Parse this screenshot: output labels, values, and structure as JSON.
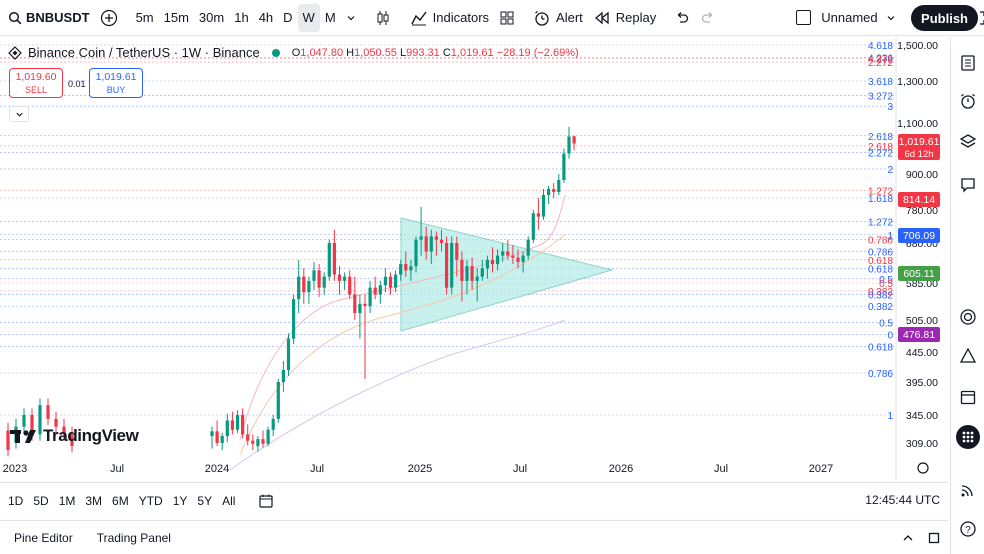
{
  "toolbar": {
    "symbol": "BNBUSDT",
    "intervals": [
      "5m",
      "15m",
      "30m",
      "1h",
      "4h",
      "D",
      "W",
      "M"
    ],
    "active_interval": "W",
    "indicators_label": "Indicators",
    "alert_label": "Alert",
    "replay_label": "Replay",
    "layout_name": "Unnamed",
    "publish_label": "Publish"
  },
  "legend": {
    "title": "Binance Coin / TetherUS · 1W · Binance",
    "o_label": "O",
    "o": "1,047.80",
    "h_label": "H",
    "h": "1,050.55",
    "l_label": "L",
    "l": "993.31",
    "c_label": "C",
    "c": "1,019.61",
    "change": "−28.19 (−2.69%)"
  },
  "trade": {
    "sell_price": "1,019.60",
    "sell_label": "SELL",
    "spread": "0.01",
    "buy_price": "1,019.61",
    "buy_label": "BUY"
  },
  "colors": {
    "up": "#089981",
    "down": "#f23645",
    "accent": "#2962ff",
    "triangle": "#b2ebe5"
  },
  "chart_data": {
    "type": "candlestick",
    "x_tick_labels": [
      "2023",
      "Jul",
      "2024",
      "Jul",
      "2025",
      "Jul",
      "2026",
      "Jul",
      "2027"
    ],
    "y_tick_labels": [
      "1,500.00",
      "1,300.00",
      "1,100.00",
      "900.00",
      "780.00",
      "680.00",
      "585.00",
      "505.00",
      "445.00",
      "395.00",
      "345.00",
      "309.00"
    ],
    "price_tags": [
      {
        "label": "1,019.61",
        "sub": "6d 12h",
        "color": "#f23645"
      },
      {
        "label": "814.14",
        "color": "#f23645"
      },
      {
        "label": "706.09",
        "color": "#2962ff"
      },
      {
        "label": "605.11",
        "color": "#43a047"
      },
      {
        "label": "476.81",
        "color": "#9c27b0"
      }
    ],
    "fib_levels": [
      {
        "label": "4.618",
        "color": "#2962ff",
        "price": 1500
      },
      {
        "label": "4.236",
        "color": "#2962ff",
        "price": 1430
      },
      {
        "label": "4.272",
        "color": "#f23645",
        "price": 1425
      },
      {
        "label": "2.272",
        "color": "#f23645",
        "price": 1405
      },
      {
        "label": "3.618",
        "color": "#2962ff",
        "price": 1300
      },
      {
        "label": "3.272",
        "color": "#2962ff",
        "price": 1230
      },
      {
        "label": "3",
        "color": "#2962ff",
        "price": 1180
      },
      {
        "label": "2.618",
        "color": "#2962ff",
        "price": 1050
      },
      {
        "label": "2.618",
        "color": "#f23645",
        "price": 1010
      },
      {
        "label": "2.272",
        "color": "#2962ff",
        "price": 985
      },
      {
        "label": "2",
        "color": "#2962ff",
        "price": 920
      },
      {
        "label": "1.272",
        "color": "#f23645",
        "price": 845
      },
      {
        "label": "1.618",
        "color": "#2962ff",
        "price": 820
      },
      {
        "label": "1.272",
        "color": "#2962ff",
        "price": 745
      },
      {
        "label": "1",
        "color": "#2962ff",
        "price": 705
      },
      {
        "label": "0.786",
        "color": "#f23645",
        "price": 690
      },
      {
        "label": "0.786",
        "color": "#2962ff",
        "price": 660
      },
      {
        "label": "0.618",
        "color": "#f23645",
        "price": 640
      },
      {
        "label": "0.618",
        "color": "#2962ff",
        "price": 620
      },
      {
        "label": "0.5",
        "color": "#2962ff",
        "price": 595
      },
      {
        "label": "0.5",
        "color": "#f23645",
        "price": 585
      },
      {
        "label": "0.382",
        "color": "#f23645",
        "price": 568
      },
      {
        "label": "0.382",
        "color": "#2962ff",
        "price": 560
      },
      {
        "label": "0.382",
        "color": "#2962ff",
        "price": 535
      },
      {
        "label": "0.5",
        "color": "#2962ff",
        "price": 500
      },
      {
        "label": "0",
        "color": "#2962ff",
        "price": 478
      },
      {
        "label": "0.618",
        "color": "#2962ff",
        "price": 455
      },
      {
        "label": "0.786",
        "color": "#2962ff",
        "price": 410
      },
      {
        "label": "1",
        "color": "#2962ff",
        "price": 345
      }
    ],
    "candles": [
      {
        "o": 318,
        "h": 330,
        "l": 302,
        "c": 324
      },
      {
        "o": 324,
        "h": 338,
        "l": 305,
        "c": 309
      },
      {
        "o": 309,
        "h": 322,
        "l": 300,
        "c": 318
      },
      {
        "o": 318,
        "h": 347,
        "l": 310,
        "c": 338
      },
      {
        "o": 338,
        "h": 350,
        "l": 320,
        "c": 326
      },
      {
        "o": 326,
        "h": 352,
        "l": 322,
        "c": 345
      },
      {
        "o": 345,
        "h": 355,
        "l": 315,
        "c": 320
      },
      {
        "o": 320,
        "h": 333,
        "l": 306,
        "c": 312
      },
      {
        "o": 312,
        "h": 320,
        "l": 300,
        "c": 308
      },
      {
        "o": 305,
        "h": 318,
        "l": 298,
        "c": 314
      },
      {
        "o": 314,
        "h": 325,
        "l": 303,
        "c": 308
      },
      {
        "o": 308,
        "h": 330,
        "l": 305,
        "c": 326
      },
      {
        "o": 326,
        "h": 345,
        "l": 318,
        "c": 340
      },
      {
        "o": 340,
        "h": 400,
        "l": 335,
        "c": 395
      },
      {
        "o": 395,
        "h": 430,
        "l": 380,
        "c": 415
      },
      {
        "o": 415,
        "h": 480,
        "l": 405,
        "c": 470
      },
      {
        "o": 470,
        "h": 560,
        "l": 460,
        "c": 550
      },
      {
        "o": 550,
        "h": 640,
        "l": 520,
        "c": 600
      },
      {
        "o": 600,
        "h": 620,
        "l": 540,
        "c": 565
      },
      {
        "o": 565,
        "h": 600,
        "l": 540,
        "c": 590
      },
      {
        "o": 590,
        "h": 635,
        "l": 570,
        "c": 615
      },
      {
        "o": 615,
        "h": 630,
        "l": 555,
        "c": 575
      },
      {
        "o": 575,
        "h": 610,
        "l": 560,
        "c": 600
      },
      {
        "o": 600,
        "h": 690,
        "l": 590,
        "c": 680
      },
      {
        "o": 680,
        "h": 720,
        "l": 590,
        "c": 605
      },
      {
        "o": 605,
        "h": 625,
        "l": 560,
        "c": 590
      },
      {
        "o": 590,
        "h": 610,
        "l": 570,
        "c": 600
      },
      {
        "o": 600,
        "h": 615,
        "l": 550,
        "c": 560
      },
      {
        "o": 560,
        "h": 600,
        "l": 505,
        "c": 520
      },
      {
        "o": 520,
        "h": 560,
        "l": 470,
        "c": 540
      },
      {
        "o": 540,
        "h": 560,
        "l": 400,
        "c": 535
      },
      {
        "o": 535,
        "h": 590,
        "l": 520,
        "c": 575
      },
      {
        "o": 575,
        "h": 600,
        "l": 550,
        "c": 560
      },
      {
        "o": 560,
        "h": 590,
        "l": 540,
        "c": 580
      },
      {
        "o": 580,
        "h": 620,
        "l": 565,
        "c": 600
      },
      {
        "o": 600,
        "h": 610,
        "l": 560,
        "c": 575
      },
      {
        "o": 575,
        "h": 615,
        "l": 565,
        "c": 605
      },
      {
        "o": 605,
        "h": 640,
        "l": 590,
        "c": 630
      },
      {
        "o": 630,
        "h": 660,
        "l": 600,
        "c": 615
      },
      {
        "o": 615,
        "h": 640,
        "l": 590,
        "c": 625
      },
      {
        "o": 625,
        "h": 700,
        "l": 610,
        "c": 690
      },
      {
        "o": 690,
        "h": 790,
        "l": 650,
        "c": 700
      },
      {
        "o": 700,
        "h": 730,
        "l": 640,
        "c": 660
      },
      {
        "o": 660,
        "h": 720,
        "l": 630,
        "c": 700
      },
      {
        "o": 700,
        "h": 715,
        "l": 650,
        "c": 690
      },
      {
        "o": 690,
        "h": 720,
        "l": 660,
        "c": 680
      },
      {
        "o": 680,
        "h": 700,
        "l": 560,
        "c": 575
      },
      {
        "o": 575,
        "h": 700,
        "l": 560,
        "c": 680
      },
      {
        "o": 680,
        "h": 700,
        "l": 600,
        "c": 640
      },
      {
        "o": 640,
        "h": 660,
        "l": 545,
        "c": 590
      },
      {
        "o": 590,
        "h": 640,
        "l": 560,
        "c": 625
      },
      {
        "o": 625,
        "h": 645,
        "l": 570,
        "c": 590
      },
      {
        "o": 590,
        "h": 620,
        "l": 545,
        "c": 600
      },
      {
        "o": 600,
        "h": 640,
        "l": 590,
        "c": 620
      },
      {
        "o": 620,
        "h": 650,
        "l": 595,
        "c": 640
      },
      {
        "o": 640,
        "h": 670,
        "l": 610,
        "c": 630
      },
      {
        "o": 630,
        "h": 665,
        "l": 615,
        "c": 650
      },
      {
        "o": 650,
        "h": 680,
        "l": 635,
        "c": 660
      },
      {
        "o": 660,
        "h": 690,
        "l": 640,
        "c": 650
      },
      {
        "o": 650,
        "h": 675,
        "l": 630,
        "c": 645
      },
      {
        "o": 645,
        "h": 665,
        "l": 620,
        "c": 635
      },
      {
        "o": 635,
        "h": 660,
        "l": 610,
        "c": 650
      },
      {
        "o": 650,
        "h": 700,
        "l": 640,
        "c": 690
      },
      {
        "o": 690,
        "h": 780,
        "l": 680,
        "c": 770
      },
      {
        "o": 770,
        "h": 820,
        "l": 720,
        "c": 760
      },
      {
        "o": 760,
        "h": 850,
        "l": 750,
        "c": 830
      },
      {
        "o": 830,
        "h": 860,
        "l": 800,
        "c": 850
      },
      {
        "o": 850,
        "h": 870,
        "l": 820,
        "c": 840
      },
      {
        "o": 840,
        "h": 900,
        "l": 830,
        "c": 880
      },
      {
        "o": 880,
        "h": 1000,
        "l": 870,
        "c": 980
      },
      {
        "o": 980,
        "h": 1085,
        "l": 960,
        "c": 1047
      },
      {
        "o": 1047.8,
        "h": 1050.55,
        "l": 993.31,
        "c": 1019.61
      }
    ]
  },
  "timebar": {
    "ranges": [
      "1D",
      "5D",
      "1M",
      "3M",
      "6M",
      "YTD",
      "1Y",
      "5Y",
      "All"
    ],
    "clock": "12:45:44 UTC"
  },
  "bottombar": {
    "pine_editor": "Pine Editor",
    "trading_panel": "Trading Panel"
  },
  "logo_text": "TradingView"
}
